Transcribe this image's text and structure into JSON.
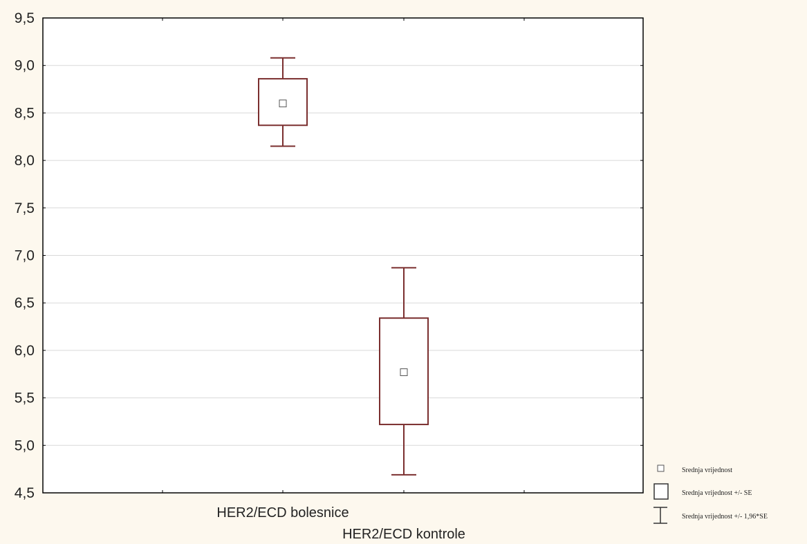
{
  "chart_data": {
    "type": "box",
    "categories": [
      "HER2/ECD bolesnice",
      "HER2/ECD kontrole"
    ],
    "series": [
      {
        "points": [
          {
            "category": "HER2/ECD bolesnice",
            "mean": 8.6,
            "se_low": 8.37,
            "se_high": 8.86,
            "ci_low": 8.15,
            "ci_high": 9.08
          },
          {
            "category": "HER2/ECD kontrole",
            "mean": 5.77,
            "se_low": 5.22,
            "se_high": 6.34,
            "ci_low": 4.69,
            "ci_high": 6.87
          }
        ]
      }
    ],
    "ylim": [
      4.5,
      9.5
    ],
    "yticks": [
      "4,5",
      "5,0",
      "5,5",
      "6,0",
      "6,5",
      "7,0",
      "7,5",
      "8,0",
      "8,5",
      "9,0",
      "9,5"
    ],
    "ytick_values": [
      4.5,
      5.0,
      5.5,
      6.0,
      6.5,
      7.0,
      7.5,
      8.0,
      8.5,
      9.0,
      9.5
    ],
    "grid": true,
    "legend": {
      "placement": "bottom-right",
      "entries": [
        {
          "symbol": "mean-square",
          "label": "Srednja vrijednost"
        },
        {
          "symbol": "box",
          "label": "Srednja vrijednost +/- SE"
        },
        {
          "symbol": "whisker",
          "label": "Srednja vrijednost +/- 1,96*SE"
        }
      ]
    },
    "colors": {
      "box": "#7a2e2e",
      "grid": "#d9d9d9",
      "frame": "#000000",
      "outer_background": "#fdf8ee"
    }
  }
}
